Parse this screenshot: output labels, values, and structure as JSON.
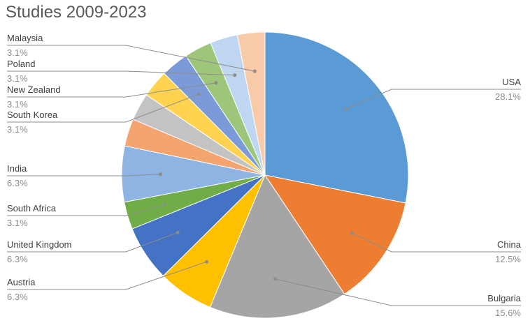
{
  "chart_data": {
    "type": "pie",
    "title": "Studies 2009-2023",
    "slices": [
      {
        "label": "USA",
        "display": "28.1%",
        "value": 28.1,
        "color": "#5b9bd5"
      },
      {
        "label": "China",
        "display": "12.5%",
        "value": 12.5,
        "color": "#ed7d31"
      },
      {
        "label": "Bulgaria",
        "display": "15.6%",
        "value": 15.6,
        "color": "#a5a5a5"
      },
      {
        "label": "Austria",
        "display": "6.3%",
        "value": 6.3,
        "color": "#ffc000"
      },
      {
        "label": "United Kingdom",
        "display": "6.3%",
        "value": 6.3,
        "color": "#4472c4"
      },
      {
        "label": "South Africa",
        "display": "3.1%",
        "value": 3.1,
        "color": "#70ad47"
      },
      {
        "label": "India",
        "display": "6.3%",
        "value": 6.3,
        "color": "#8db4e2"
      },
      {
        "label": "",
        "display": "",
        "value": 3.1,
        "color": "#f4a46e"
      },
      {
        "label": "",
        "display": "",
        "value": 3.1,
        "color": "#c3c3c3"
      },
      {
        "label": "",
        "display": "",
        "value": 3.1,
        "color": "#ffd34f"
      },
      {
        "label": "South Korea",
        "display": "3.1%",
        "value": 3.1,
        "color": "#7b9bd8"
      },
      {
        "label": "New Zealand",
        "display": "3.1%",
        "value": 3.1,
        "color": "#9dc67a"
      },
      {
        "label": "Poland",
        "display": "3.1%",
        "value": 3.1,
        "color": "#bed6ef"
      },
      {
        "label": "Malaysia",
        "display": "3.1%",
        "value": 3.1,
        "color": "#f7cba9"
      }
    ]
  }
}
